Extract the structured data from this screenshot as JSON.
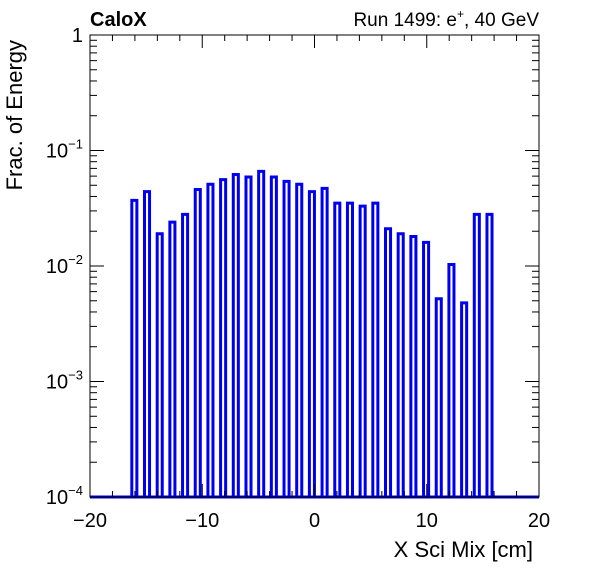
{
  "header": {
    "left_label": "CaloX",
    "right_label": "Run 1499: e",
    "right_label_sup": "+",
    "right_label_tail": ", 40 GeV"
  },
  "colors": {
    "series": "#0000ee",
    "axis": "#000000"
  },
  "chart_data": {
    "type": "bar",
    "title": "",
    "xlabel": "X Sci Mix [cm]",
    "ylabel": "Frac. of Energy",
    "xlim": [
      -20,
      20
    ],
    "ylim": [
      0.0001,
      1
    ],
    "y_scale": "log",
    "x_ticks": [
      -20,
      -10,
      0,
      10,
      20
    ],
    "y_ticks": [
      {
        "value": 0.0001,
        "base": "10",
        "exp": "−4"
      },
      {
        "value": 0.001,
        "base": "10",
        "exp": "−3"
      },
      {
        "value": 0.01,
        "base": "10",
        "exp": "−2"
      },
      {
        "value": 0.1,
        "base": "10",
        "exp": "−1"
      },
      {
        "value": 1,
        "base": "1",
        "exp": ""
      }
    ],
    "bar_width": 0.45,
    "x": [
      -16.05,
      -14.92,
      -13.79,
      -12.66,
      -11.53,
      -10.4,
      -9.27,
      -8.14,
      -7.01,
      -5.88,
      -4.75,
      -3.62,
      -2.49,
      -1.36,
      -0.23,
      0.9,
      2.03,
      3.16,
      4.29,
      5.42,
      6.55,
      7.68,
      8.81,
      9.94,
      11.07,
      12.2,
      13.33,
      14.46,
      15.59
    ],
    "values": [
      0.037,
      0.044,
      0.019,
      0.024,
      0.028,
      0.046,
      0.051,
      0.056,
      0.062,
      0.059,
      0.066,
      0.059,
      0.054,
      0.051,
      0.044,
      0.047,
      0.035,
      0.035,
      0.033,
      0.035,
      0.021,
      0.019,
      0.018,
      0.016,
      0.0052,
      0.0103,
      0.0048,
      0.028,
      0.028
    ],
    "grid": false,
    "legend": "none"
  }
}
